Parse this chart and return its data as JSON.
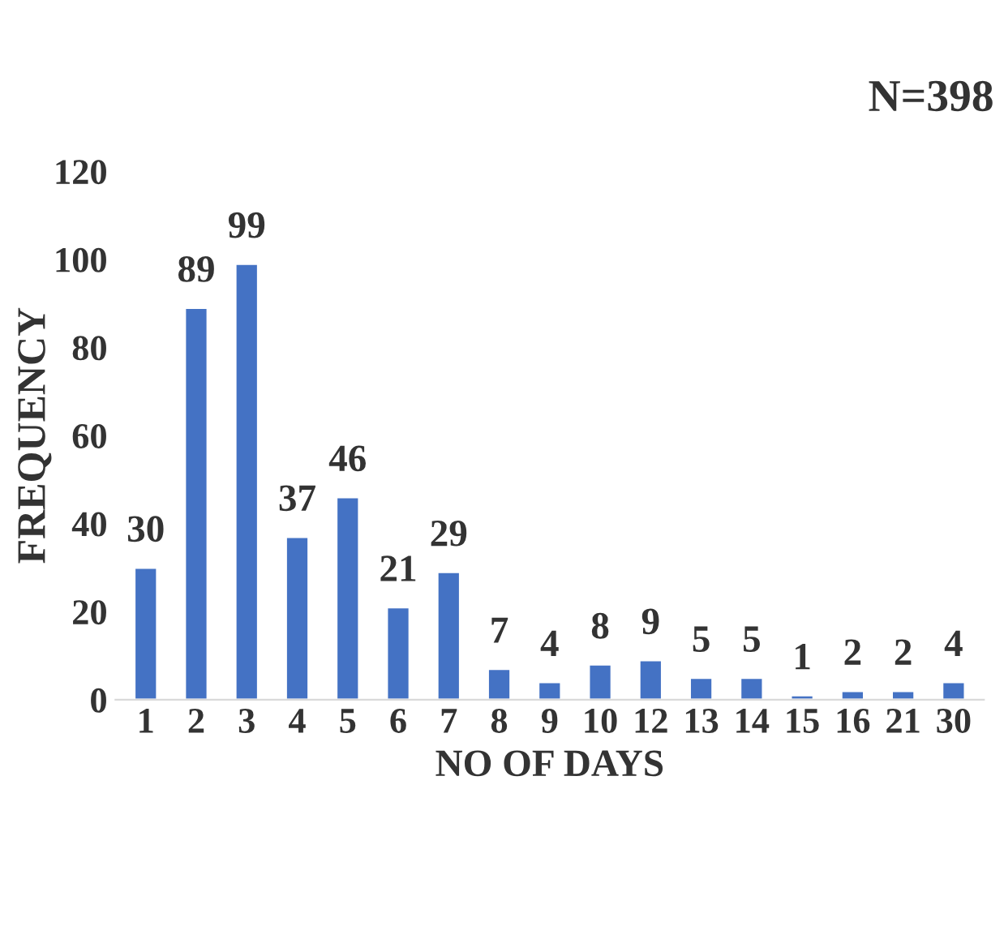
{
  "chart_data": {
    "type": "bar",
    "xlabel": "NO OF DAYS",
    "ylabel": "FREQUENCY",
    "annotations": [
      "N=398"
    ],
    "categories": [
      "1",
      "2",
      "3",
      "4",
      "5",
      "6",
      "7",
      "8",
      "9",
      "10",
      "12",
      "13",
      "14",
      "15",
      "16",
      "21",
      "30"
    ],
    "values": [
      30,
      89,
      99,
      37,
      46,
      21,
      29,
      7,
      4,
      8,
      9,
      5,
      5,
      1,
      2,
      2,
      4
    ],
    "color": "#4472c4",
    "ylim": [
      0,
      120
    ],
    "yticks": [
      0,
      20,
      40,
      60,
      80,
      100,
      120
    ],
    "data_labels": true
  }
}
